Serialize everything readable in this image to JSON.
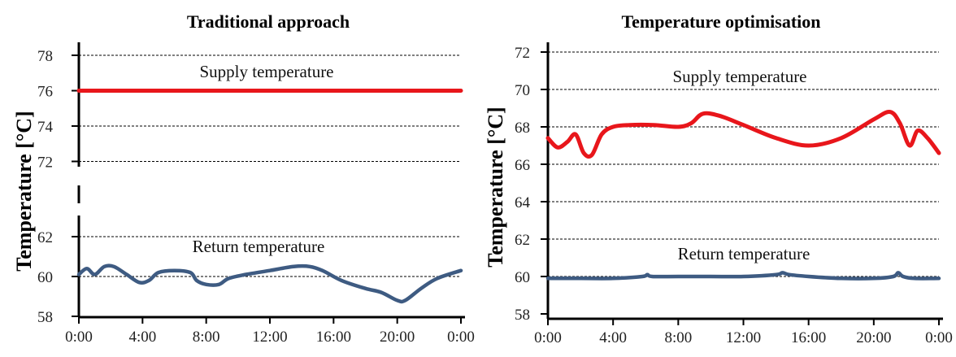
{
  "chart_data": [
    {
      "type": "line",
      "title": "Traditional approach",
      "ylabel": "Temperature [°C]",
      "xlabel": "",
      "x_ticks": [
        "0:00",
        "4:00",
        "8:00",
        "12:00",
        "16:00",
        "20:00",
        "0:00"
      ],
      "y_ticks": [
        "58",
        "60",
        "62",
        "72",
        "74",
        "76",
        "78"
      ],
      "axis_break": "between 62 and 72",
      "grid": true,
      "annotations": [
        "Supply temperature",
        "Return temperature"
      ],
      "colors": {
        "supply": "#e8161b",
        "return": "#3e5b82"
      },
      "series": [
        {
          "name": "Supply temperature",
          "x": [
            0,
            24
          ],
          "y": [
            76.0,
            76.0
          ]
        },
        {
          "name": "Return temperature",
          "x": [
            0,
            0.5,
            1.0,
            1.6,
            2.2,
            3.0,
            3.8,
            4.4,
            5.0,
            6.0,
            7.0,
            7.4,
            8.0,
            8.8,
            9.4,
            10.5,
            12.0,
            13.5,
            14.5,
            15.3,
            16.5,
            18.0,
            19.0,
            20.0,
            20.5,
            21.5,
            22.5,
            24.0
          ],
          "y": [
            60.1,
            60.4,
            60.1,
            60.5,
            60.5,
            60.1,
            59.7,
            59.8,
            60.2,
            60.3,
            60.2,
            59.8,
            59.6,
            59.6,
            59.9,
            60.1,
            60.3,
            60.5,
            60.5,
            60.3,
            59.8,
            59.4,
            59.2,
            58.8,
            58.8,
            59.4,
            59.9,
            60.3
          ]
        }
      ]
    },
    {
      "type": "line",
      "title": "Temperature optimisation",
      "ylabel": "Temperature [°C]",
      "xlabel": "",
      "x_ticks": [
        "0:00",
        "4:00",
        "8:00",
        "12:00",
        "16:00",
        "20:00",
        "0:00"
      ],
      "y_ticks": [
        "58",
        "60",
        "62",
        "64",
        "66",
        "68",
        "70",
        "72"
      ],
      "ylim": [
        58,
        72
      ],
      "grid": true,
      "annotations": [
        "Supply temperature",
        "Return temperature"
      ],
      "colors": {
        "supply": "#e8161b",
        "return": "#3e5b82"
      },
      "series": [
        {
          "name": "Supply temperature",
          "x": [
            0,
            0.6,
            1.2,
            1.7,
            2.2,
            2.7,
            3.3,
            4.0,
            5.0,
            6.5,
            8.0,
            8.8,
            9.5,
            10.5,
            12.0,
            14.0,
            16.0,
            18.0,
            20.0,
            21.0,
            21.6,
            22.2,
            22.7,
            23.3,
            24.0
          ],
          "y": [
            67.4,
            66.9,
            67.2,
            67.6,
            66.6,
            66.5,
            67.6,
            68.0,
            68.1,
            68.1,
            68.0,
            68.2,
            68.7,
            68.6,
            68.1,
            67.4,
            67.0,
            67.4,
            68.4,
            68.8,
            68.2,
            67.0,
            67.8,
            67.4,
            66.6
          ]
        },
        {
          "name": "Return temperature",
          "x": [
            0,
            2,
            4,
            5.8,
            6.1,
            6.4,
            8,
            10,
            12,
            14.0,
            14.4,
            14.8,
            16,
            18,
            20,
            21.2,
            21.5,
            21.8,
            22.5,
            24
          ],
          "y": [
            59.9,
            59.9,
            59.9,
            60.0,
            60.1,
            60.0,
            60.0,
            60.0,
            60.0,
            60.1,
            60.2,
            60.1,
            60.0,
            59.9,
            59.9,
            60.0,
            60.2,
            60.0,
            59.9,
            59.9
          ]
        }
      ]
    }
  ]
}
